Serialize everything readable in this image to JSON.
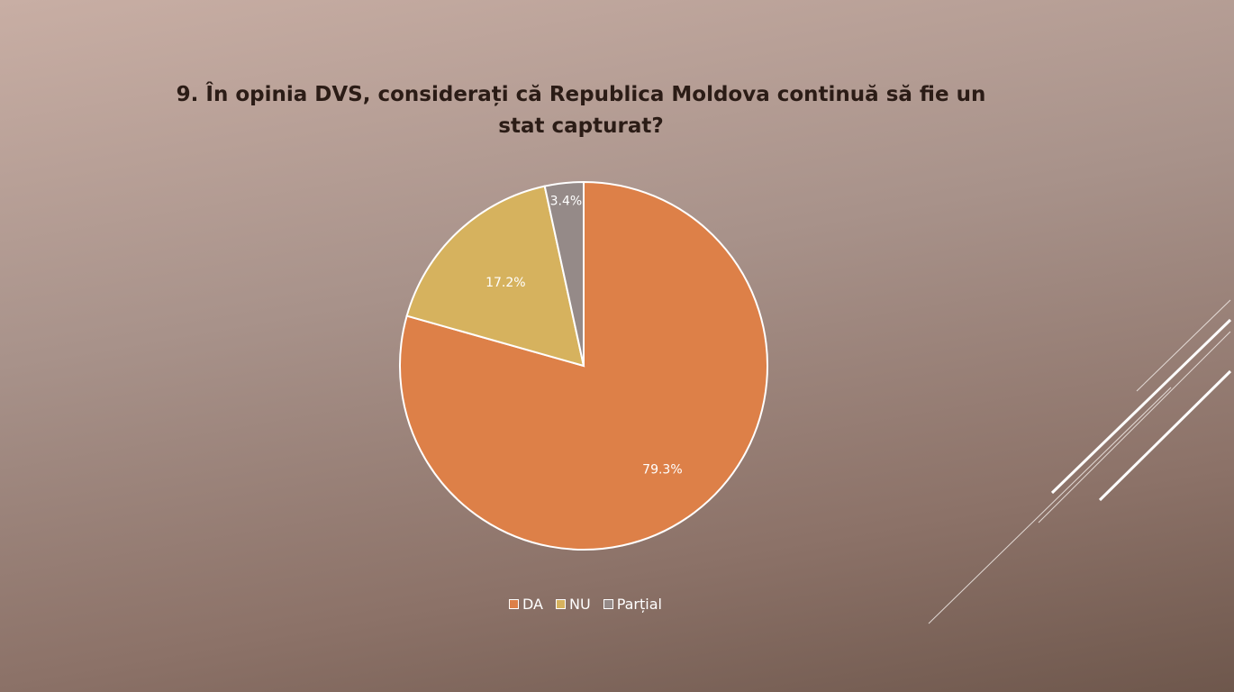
{
  "slide": {
    "title": "9. În opinia DVS, considerați că Republica Moldova continuă să fie un stat capturat?"
  },
  "chart_data": {
    "type": "pie",
    "title": "9. În opinia DVS, considerați că Republica Moldova continuă să fie un stat capturat?",
    "categories": [
      "DA",
      "NU",
      "Parțial"
    ],
    "values": [
      79.3,
      17.2,
      3.4
    ],
    "labels": [
      "79.3%",
      "17.2%",
      "3.4%"
    ],
    "colors": [
      "#dd8048",
      "#d6b25e",
      "#958a88"
    ],
    "legend_position": "bottom"
  }
}
